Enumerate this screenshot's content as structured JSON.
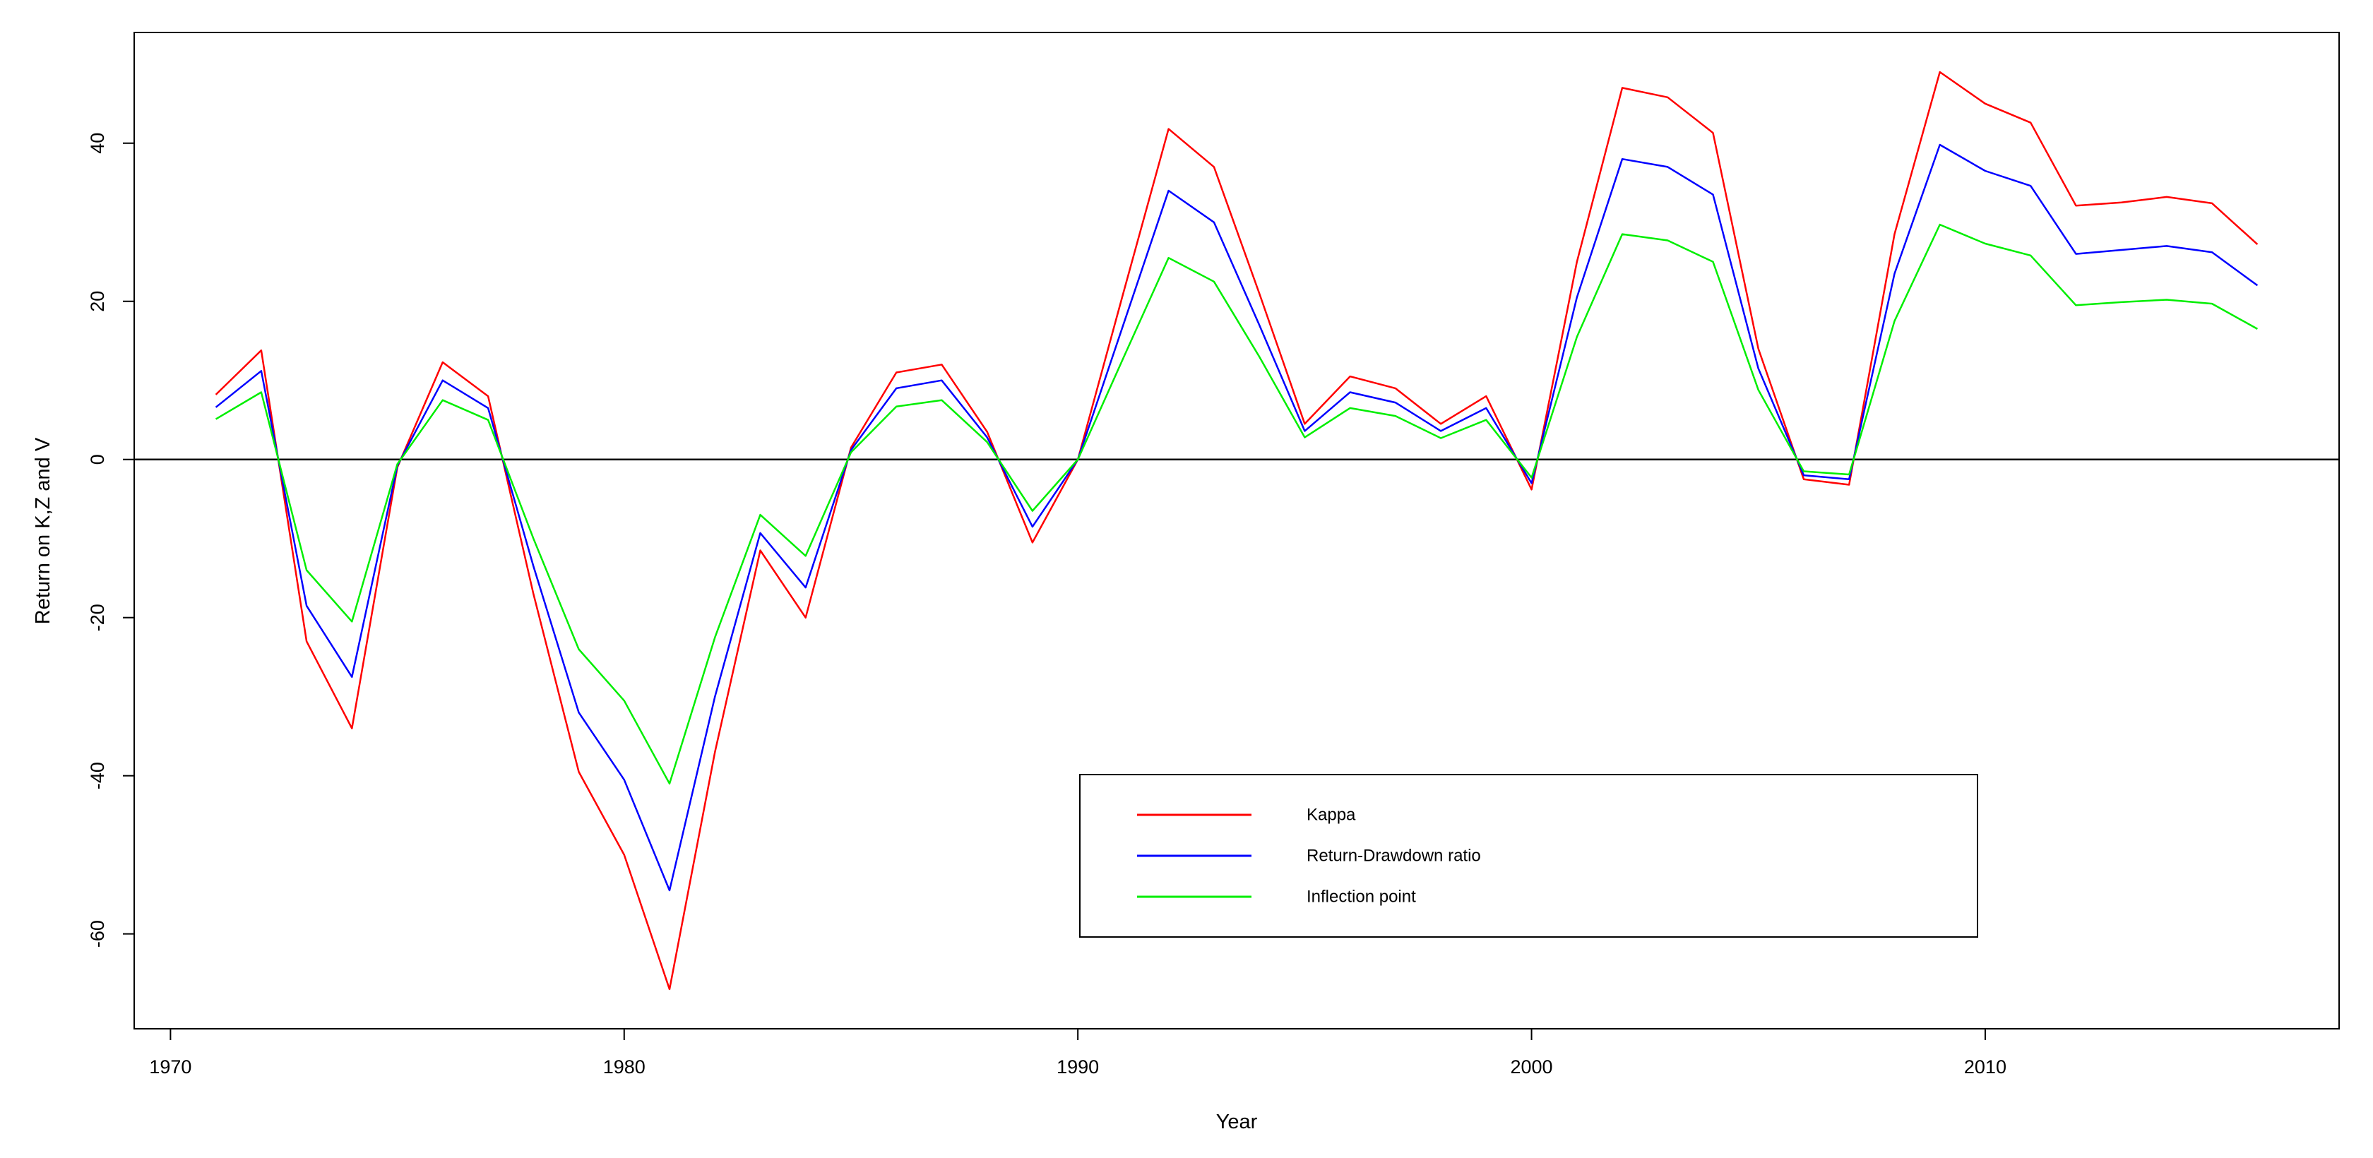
{
  "chart_data": {
    "type": "line",
    "title": "",
    "xlabel": "Year",
    "ylabel": "Return on K,Z and V",
    "xlim": [
      1969.2,
      2017.8
    ],
    "ylim": [
      -72,
      54
    ],
    "x_ticks": [
      1970,
      1980,
      1990,
      2000,
      2010
    ],
    "y_ticks": [
      -60,
      -40,
      -20,
      0,
      20,
      40
    ],
    "zero_line": 0,
    "grid": false,
    "legend_position": "bottom-center",
    "x": [
      1971,
      1972,
      1973,
      1974,
      1975,
      1976,
      1977,
      1978,
      1979,
      1980,
      1981,
      1982,
      1983,
      1984,
      1985,
      1986,
      1987,
      1988,
      1989,
      1990,
      1991,
      1992,
      1993,
      1994,
      1995,
      1996,
      1997,
      1998,
      1999,
      2000,
      2001,
      2002,
      2003,
      2004,
      2005,
      2006,
      2007,
      2008,
      2009,
      2010,
      2011,
      2012,
      2013,
      2014,
      2015,
      2016
    ],
    "series": [
      {
        "name": "Kappa",
        "color": "#ff0000",
        "values": [
          8.2,
          13.8,
          -23,
          -34,
          -1,
          12.3,
          8,
          -17,
          -39.5,
          -50,
          -67,
          -37,
          -11.5,
          -20,
          1.5,
          11,
          12,
          3.5,
          -10.5,
          0,
          21,
          41.8,
          37,
          21,
          4.5,
          10.5,
          9,
          4.5,
          8,
          -3.8,
          25,
          47,
          45.8,
          41.3,
          14,
          -2.5,
          -3.2,
          28.5,
          49,
          45,
          42.6,
          32.1,
          32.5,
          33.2,
          32.4,
          27.2
        ]
      },
      {
        "name": "Return-Drawdown ratio",
        "color": "#0000ff",
        "values": [
          6.6,
          11.2,
          -18.5,
          -27.5,
          -0.8,
          10,
          6.5,
          -13.5,
          -32,
          -40.5,
          -54.5,
          -30,
          -9.3,
          -16.2,
          1.2,
          9,
          10,
          2.8,
          -8.5,
          0,
          17,
          34,
          30,
          17,
          3.6,
          8.5,
          7.2,
          3.6,
          6.5,
          -3,
          20.5,
          38,
          37,
          33.5,
          11.5,
          -2,
          -2.5,
          23.5,
          39.8,
          36.5,
          34.6,
          26,
          26.5,
          27,
          26.2,
          22
        ]
      },
      {
        "name": "Inflection point",
        "color": "#00ee00",
        "values": [
          5.1,
          8.5,
          -14,
          -20.5,
          -0.6,
          7.5,
          5,
          -10,
          -24,
          -30.5,
          -41,
          -22.5,
          -7,
          -12.2,
          0.9,
          6.7,
          7.5,
          2.2,
          -6.5,
          0,
          12.8,
          25.5,
          22.5,
          13,
          2.8,
          6.5,
          5.5,
          2.7,
          5,
          -2.3,
          15.5,
          28.5,
          27.7,
          25,
          8.8,
          -1.5,
          -1.9,
          17.5,
          29.7,
          27.3,
          25.8,
          19.5,
          19.9,
          20.2,
          19.7,
          16.5
        ]
      }
    ]
  }
}
